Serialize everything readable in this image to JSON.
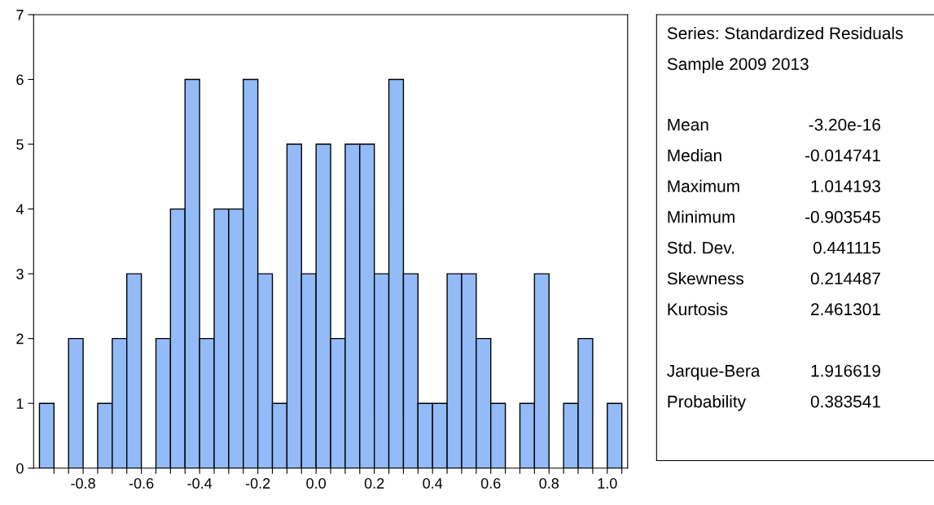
{
  "chart_data": {
    "type": "histogram",
    "bins": [
      -0.95,
      -0.9,
      -0.85,
      -0.8,
      -0.75,
      -0.7,
      -0.65,
      -0.6,
      -0.55,
      -0.5,
      -0.45,
      -0.4,
      -0.35,
      -0.3,
      -0.25,
      -0.2,
      -0.15,
      -0.1,
      -0.05,
      0.0,
      0.05,
      0.1,
      0.15,
      0.2,
      0.25,
      0.3,
      0.35,
      0.4,
      0.45,
      0.5,
      0.55,
      0.6,
      0.65,
      0.7,
      0.75,
      0.8,
      0.85,
      0.9,
      0.95,
      1.0,
      1.05
    ],
    "values": [
      1,
      0,
      2,
      0,
      1,
      2,
      3,
      0,
      2,
      4,
      6,
      2,
      4,
      4,
      6,
      3,
      1,
      5,
      3,
      5,
      2,
      5,
      5,
      3,
      6,
      3,
      1,
      1,
      3,
      3,
      2,
      1,
      0,
      1,
      3,
      0,
      1,
      2,
      0,
      1
    ],
    "color": "#92bbf8",
    "xlim": [
      -0.97,
      1.07
    ],
    "xticks": [
      {
        "value": -0.9,
        "label": null
      },
      {
        "value": -0.85,
        "label": null
      },
      {
        "value": -0.8,
        "label": "-0.8"
      },
      {
        "value": -0.75,
        "label": null
      },
      {
        "value": -0.7,
        "label": null
      },
      {
        "value": -0.65,
        "label": null
      },
      {
        "value": -0.6,
        "label": "-0.6"
      },
      {
        "value": -0.55,
        "label": null
      },
      {
        "value": -0.5,
        "label": null
      },
      {
        "value": -0.45,
        "label": null
      },
      {
        "value": -0.4,
        "label": "-0.4"
      },
      {
        "value": -0.35,
        "label": null
      },
      {
        "value": -0.3,
        "label": null
      },
      {
        "value": -0.25,
        "label": null
      },
      {
        "value": -0.2,
        "label": "-0.2"
      },
      {
        "value": -0.15,
        "label": null
      },
      {
        "value": -0.1,
        "label": null
      },
      {
        "value": -0.05,
        "label": null
      },
      {
        "value": 0.0,
        "label": "0.0"
      },
      {
        "value": 0.05,
        "label": null
      },
      {
        "value": 0.1,
        "label": null
      },
      {
        "value": 0.15,
        "label": null
      },
      {
        "value": 0.2,
        "label": "0.2"
      },
      {
        "value": 0.25,
        "label": null
      },
      {
        "value": 0.3,
        "label": null
      },
      {
        "value": 0.35,
        "label": null
      },
      {
        "value": 0.4,
        "label": "0.4"
      },
      {
        "value": 0.45,
        "label": null
      },
      {
        "value": 0.5,
        "label": null
      },
      {
        "value": 0.55,
        "label": null
      },
      {
        "value": 0.6,
        "label": "0.6"
      },
      {
        "value": 0.65,
        "label": null
      },
      {
        "value": 0.7,
        "label": null
      },
      {
        "value": 0.75,
        "label": null
      },
      {
        "value": 0.8,
        "label": "0.8"
      },
      {
        "value": 0.85,
        "label": null
      },
      {
        "value": 0.9,
        "label": null
      },
      {
        "value": 0.95,
        "label": null
      },
      {
        "value": 1.0,
        "label": "1.0"
      },
      {
        "value": 1.05,
        "label": null
      }
    ],
    "ylim": [
      0,
      7
    ],
    "yticks": [
      0,
      1,
      2,
      3,
      4,
      5,
      6,
      7
    ],
    "annotations": [
      "Series: Standardized Residuals",
      "Sample 2009 2013",
      "Mean",
      "-3.20e-16",
      "Median",
      "-0.014741",
      "Maximum",
      "1.014193",
      "Minimum",
      "-0.903545",
      "Std. Dev.",
      "0.441115",
      "Skewness",
      "0.214487",
      "Kurtosis",
      "2.461301",
      "Jarque-Bera",
      "1.916619",
      "Probability",
      "0.383541"
    ]
  }
}
